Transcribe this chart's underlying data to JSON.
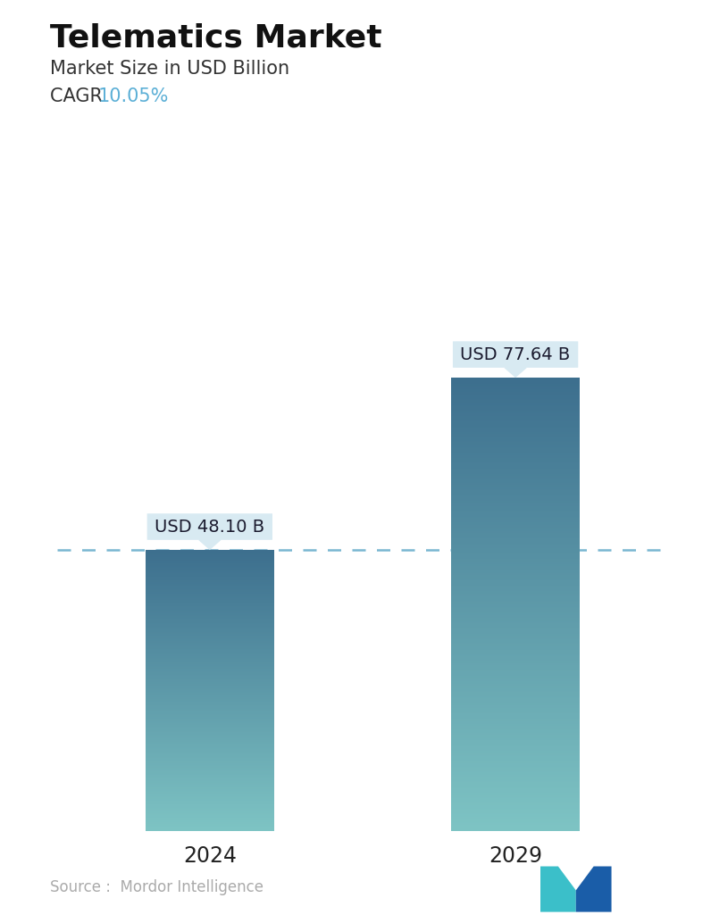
{
  "title": "Telematics Market",
  "subtitle": "Market Size in USD Billion",
  "cagr_label": "CAGR  ",
  "cagr_value": "10.05%",
  "cagr_color": "#5BAFD6",
  "categories": [
    "2024",
    "2029"
  ],
  "values": [
    48.1,
    77.64
  ],
  "bar_labels": [
    "USD 48.10 B",
    "USD 77.64 B"
  ],
  "bar_color_top": "#3D6F8E",
  "bar_color_bottom": "#7EC4C4",
  "dashed_line_color": "#6AAFCC",
  "dashed_line_value": 48.1,
  "source_text": "Source :  Mordor Intelligence",
  "source_color": "#aaaaaa",
  "background_color": "#ffffff",
  "title_fontsize": 26,
  "subtitle_fontsize": 15,
  "cagr_fontsize": 15,
  "bar_label_fontsize": 14,
  "tick_fontsize": 17,
  "source_fontsize": 12,
  "ylim": [
    0,
    95
  ],
  "bar_width": 0.42,
  "annotation_box_color": "#d8eaf2",
  "annotation_text_color": "#1a1a2e"
}
